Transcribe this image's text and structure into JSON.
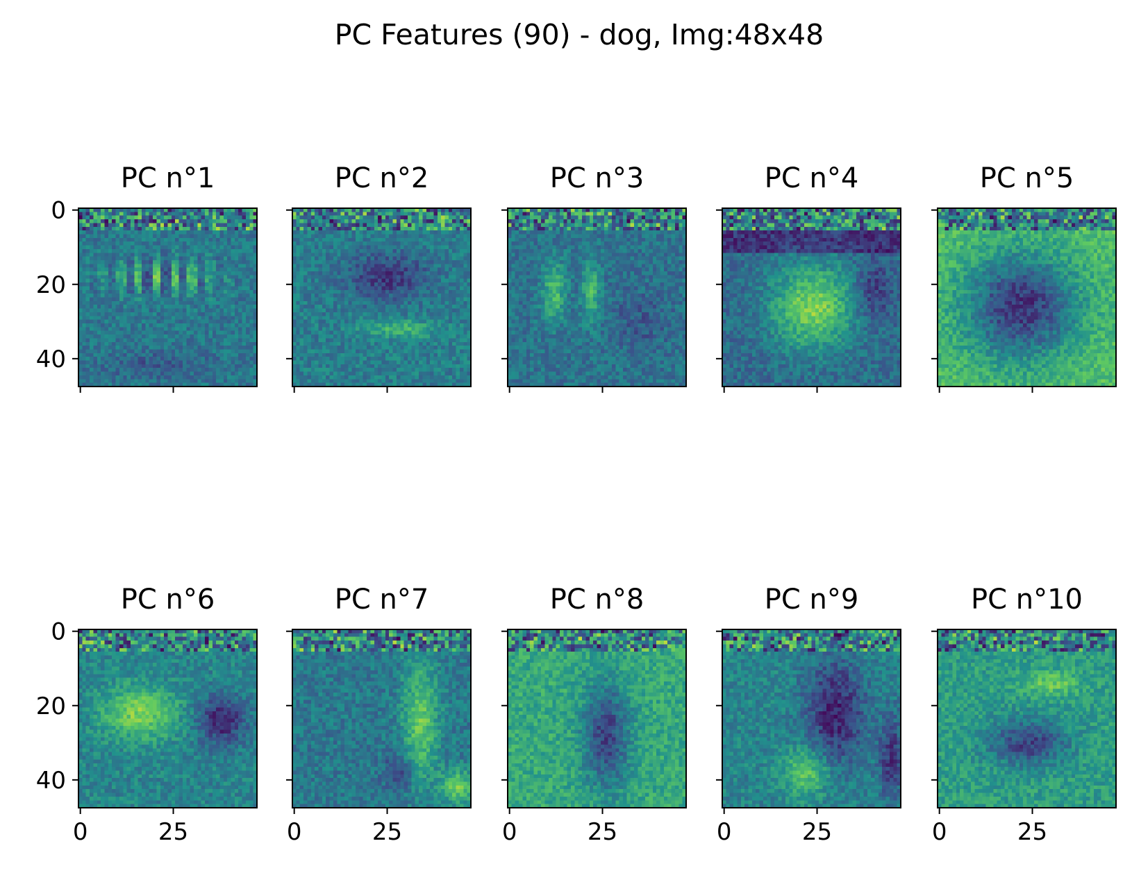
{
  "figure": {
    "title": "PC Features (90) - dog, Img:48x48"
  },
  "chart_data": {
    "type": "heatmap",
    "title": "PC Features (90) - dog, Img:48x48",
    "colormap": "viridis",
    "colormap_stops": [
      "#440154",
      "#3b528b",
      "#21918c",
      "#5ec962",
      "#fde725"
    ],
    "image_size": [
      48,
      48
    ],
    "grid": false,
    "layout": "2 rows x 5 columns",
    "x_ticks": [
      0,
      25
    ],
    "y_ticks": [
      0,
      20,
      40
    ],
    "xlim": [
      -0.5,
      47.5
    ],
    "ylim": [
      47.5,
      -0.5
    ],
    "panels": [
      {
        "title": "PC n°1"
      },
      {
        "title": "PC n°2"
      },
      {
        "title": "PC n°3"
      },
      {
        "title": "PC n°4"
      },
      {
        "title": "PC n°5"
      },
      {
        "title": "PC n°6"
      },
      {
        "title": "PC n°7"
      },
      {
        "title": "PC n°8"
      },
      {
        "title": "PC n°9"
      },
      {
        "title": "PC n°10"
      }
    ]
  }
}
